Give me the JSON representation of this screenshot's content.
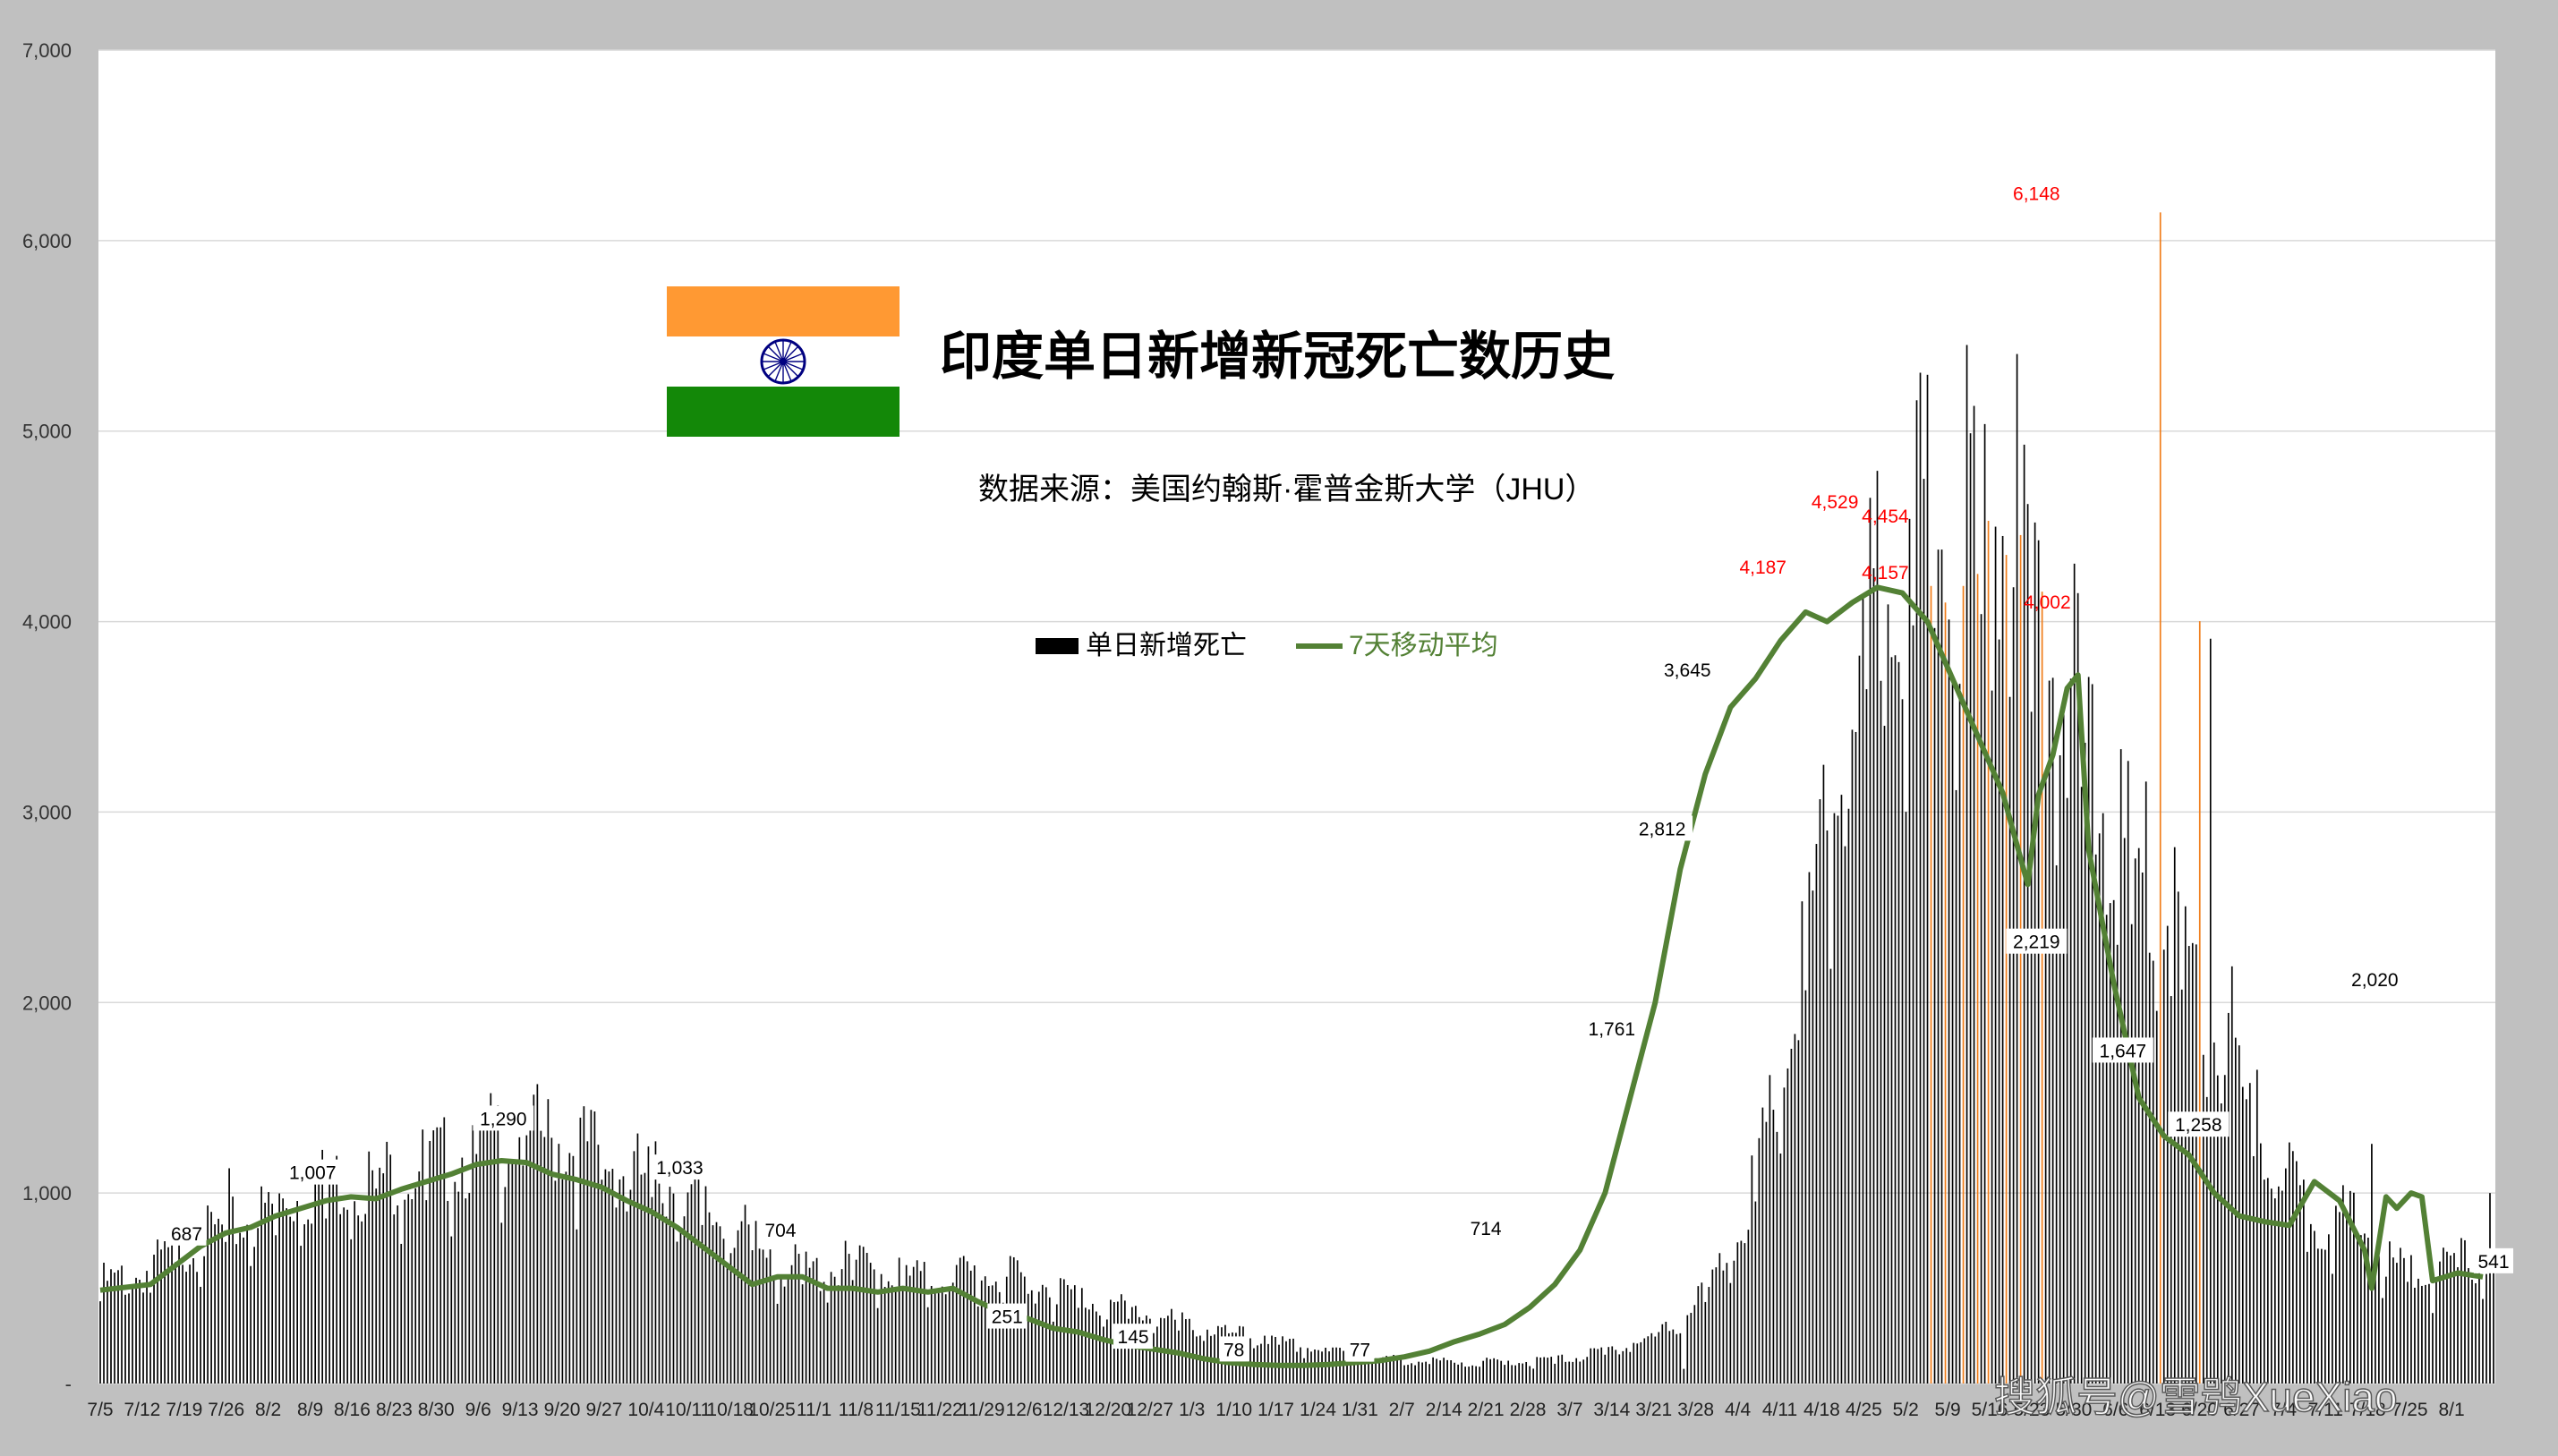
{
  "chart_data": {
    "type": "bar",
    "title": "印度单日新增新冠死亡数历史",
    "subtitle": "数据来源：美国约翰斯·霍普金斯大学（JHU）",
    "watermark": "搜狐号@雪鸮XueXiao",
    "legend": {
      "bar_label": "单日新增死亡",
      "line_label": "7天移动平均",
      "position": "top-center"
    },
    "ylim": [
      0,
      7000
    ],
    "y_ticks": [
      0,
      1000,
      2000,
      3000,
      4000,
      5000,
      6000,
      7000
    ],
    "y_tick_labels": [
      "-",
      "1,000",
      "2,000",
      "3,000",
      "4,000",
      "5,000",
      "6,000",
      "7,000"
    ],
    "grid": true,
    "colors": {
      "bar": "#000000",
      "highlight_bar": "#f07c18",
      "line": "#538135",
      "annotation_red": "#ff0000"
    },
    "x_tick_labels": [
      "7/5",
      "7/12",
      "7/19",
      "7/26",
      "8/2",
      "8/9",
      "8/16",
      "8/23",
      "8/30",
      "9/6",
      "9/13",
      "9/20",
      "9/27",
      "10/4",
      "10/11",
      "10/18",
      "10/25",
      "11/1",
      "11/8",
      "11/15",
      "11/22",
      "11/29",
      "12/6",
      "12/13",
      "12/20",
      "12/27",
      "1/3",
      "1/10",
      "1/17",
      "1/24",
      "1/31",
      "2/7",
      "2/14",
      "2/21",
      "2/28",
      "3/7",
      "3/14",
      "3/21",
      "3/28",
      "4/4",
      "4/11",
      "4/18",
      "4/25",
      "5/2",
      "5/9",
      "5/16",
      "5/23",
      "5/30",
      "6/6",
      "6/13",
      "6/20",
      "6/27",
      "7/4",
      "7/11",
      "7/18",
      "7/25",
      "8/1"
    ],
    "series": [
      {
        "name": "单日新增死亡",
        "keypoints": [
          [
            0,
            470
          ],
          [
            7,
            500
          ],
          [
            14,
            620
          ],
          [
            21,
            700
          ],
          [
            28,
            760
          ],
          [
            35,
            860
          ],
          [
            42,
            940
          ],
          [
            49,
            960
          ],
          [
            56,
            990
          ],
          [
            63,
            1030
          ],
          [
            70,
            1100
          ],
          [
            77,
            1180
          ],
          [
            84,
            1150
          ],
          [
            91,
            1100
          ],
          [
            98,
            1000
          ],
          [
            105,
            940
          ],
          [
            112,
            820
          ],
          [
            119,
            720
          ],
          [
            126,
            560
          ],
          [
            133,
            520
          ],
          [
            140,
            560
          ],
          [
            147,
            520
          ],
          [
            154,
            480
          ],
          [
            161,
            520
          ],
          [
            168,
            500
          ],
          [
            175,
            470
          ],
          [
            182,
            410
          ],
          [
            189,
            360
          ],
          [
            196,
            320
          ],
          [
            203,
            270
          ],
          [
            210,
            240
          ],
          [
            217,
            200
          ],
          [
            224,
            170
          ],
          [
            231,
            150
          ],
          [
            238,
            120
          ],
          [
            245,
            105
          ],
          [
            252,
            100
          ],
          [
            259,
            100
          ],
          [
            266,
            105
          ],
          [
            273,
            115
          ],
          [
            280,
            150
          ],
          [
            287,
            200
          ],
          [
            294,
            280
          ],
          [
            301,
            480
          ],
          [
            308,
            900
          ],
          [
            315,
            1600
          ],
          [
            322,
            2600
          ],
          [
            329,
            3400
          ],
          [
            336,
            3850
          ],
          [
            343,
            4000
          ],
          [
            350,
            4150
          ],
          [
            357,
            4000
          ],
          [
            364,
            3500
          ],
          [
            371,
            2900
          ],
          [
            378,
            2400
          ],
          [
            385,
            2300
          ],
          [
            392,
            1800
          ],
          [
            399,
            1300
          ],
          [
            406,
            1000
          ],
          [
            413,
            800
          ],
          [
            420,
            760
          ],
          [
            427,
            560
          ],
          [
            434,
            500
          ],
          [
            441,
            580
          ],
          [
            446,
            560
          ]
        ],
        "spikes": [
          [
            24,
            1130
          ],
          [
            59,
            1025
          ],
          [
            84,
            1290
          ],
          [
            106,
            1033
          ],
          [
            125,
            704
          ],
          [
            217,
            251
          ],
          [
            240,
            145
          ],
          [
            267,
            78
          ],
          [
            295,
            77
          ],
          [
            329,
            3645
          ],
          [
            332,
            3689
          ],
          [
            338,
            3980
          ],
          [
            341,
            4187
          ],
          [
            344,
            4100
          ],
          [
            347,
            4187
          ],
          [
            352,
            4529
          ],
          [
            358,
            4454
          ],
          [
            362,
            4157
          ],
          [
            367,
            3700
          ],
          [
            384,
            6148
          ],
          [
            391,
            4002
          ],
          [
            393,
            3910
          ],
          [
            397,
            2190
          ],
          [
            402,
            1647
          ],
          [
            423,
            1258
          ],
          [
            445,
            1000
          ],
          [
            455,
            2020
          ],
          [
            460,
            4000
          ],
          [
            477,
            1070
          ],
          [
            483,
            920
          ],
          [
            486,
            541
          ]
        ],
        "orange_bars": [
          [
            341,
            4187
          ],
          [
            344,
            4100
          ],
          [
            347,
            4187
          ],
          [
            350,
            4250
          ],
          [
            352,
            4529
          ],
          [
            355,
            4350
          ],
          [
            358,
            4454
          ],
          [
            362,
            4157
          ],
          [
            384,
            6148
          ],
          [
            391,
            4002
          ]
        ]
      },
      {
        "name": "7天移动平均",
        "points": [
          [
            0,
            490
          ],
          [
            14,
            520
          ],
          [
            21,
            620
          ],
          [
            28,
            720
          ],
          [
            35,
            790
          ],
          [
            42,
            820
          ],
          [
            49,
            880
          ],
          [
            56,
            920
          ],
          [
            63,
            960
          ],
          [
            70,
            980
          ],
          [
            77,
            970
          ],
          [
            84,
            1020
          ],
          [
            91,
            1060
          ],
          [
            98,
            1100
          ],
          [
            105,
            1150
          ],
          [
            112,
            1170
          ],
          [
            119,
            1160
          ],
          [
            126,
            1100
          ],
          [
            133,
            1070
          ],
          [
            140,
            1030
          ],
          [
            147,
            960
          ],
          [
            154,
            900
          ],
          [
            161,
            820
          ],
          [
            168,
            720
          ],
          [
            175,
            620
          ],
          [
            182,
            520
          ],
          [
            189,
            560
          ],
          [
            196,
            560
          ],
          [
            203,
            500
          ],
          [
            210,
            500
          ],
          [
            217,
            480
          ],
          [
            224,
            500
          ],
          [
            231,
            480
          ],
          [
            238,
            500
          ],
          [
            245,
            430
          ],
          [
            252,
            370
          ],
          [
            259,
            340
          ],
          [
            266,
            290
          ],
          [
            273,
            270
          ],
          [
            280,
            230
          ],
          [
            287,
            200
          ],
          [
            294,
            180
          ],
          [
            301,
            160
          ],
          [
            308,
            130
          ],
          [
            315,
            110
          ],
          [
            322,
            100
          ],
          [
            329,
            95
          ],
          [
            336,
            95
          ],
          [
            343,
            100
          ],
          [
            350,
            110
          ],
          [
            357,
            120
          ],
          [
            364,
            140
          ],
          [
            371,
            170
          ],
          [
            378,
            220
          ],
          [
            385,
            260
          ],
          [
            392,
            310
          ],
          [
            399,
            400
          ],
          [
            406,
            520
          ],
          [
            413,
            700
          ],
          [
            420,
            1000
          ],
          [
            427,
            1500
          ],
          [
            434,
            2000
          ],
          [
            441,
            2700
          ],
          [
            448,
            3200
          ],
          [
            455,
            3550
          ],
          [
            462,
            3700
          ],
          [
            469,
            3900
          ],
          [
            476,
            4050
          ],
          [
            482,
            4000
          ],
          [
            489,
            4100
          ],
          [
            496,
            4180
          ],
          [
            503,
            4150
          ],
          [
            510,
            4000
          ],
          [
            517,
            3700
          ],
          [
            524,
            3400
          ],
          [
            531,
            3100
          ],
          [
            538,
            2620
          ],
          [
            541,
            3090
          ],
          [
            545,
            3300
          ],
          [
            549,
            3650
          ],
          [
            552,
            3720
          ],
          [
            555,
            2800
          ],
          [
            562,
            2100
          ],
          [
            569,
            1500
          ],
          [
            576,
            1300
          ],
          [
            583,
            1200
          ],
          [
            590,
            1000
          ],
          [
            597,
            880
          ],
          [
            604,
            850
          ],
          [
            611,
            830
          ],
          [
            618,
            1060
          ],
          [
            625,
            960
          ],
          [
            632,
            700
          ],
          [
            634,
            500
          ],
          [
            638,
            980
          ],
          [
            641,
            920
          ],
          [
            645,
            1000
          ],
          [
            648,
            980
          ],
          [
            651,
            540
          ],
          [
            658,
            580
          ],
          [
            665,
            560
          ]
        ]
      }
    ],
    "annotations": [
      {
        "x": 24,
        "value": "687",
        "color": "black",
        "y": 687
      },
      {
        "x": 59,
        "value": "1,007",
        "color": "black",
        "y": 1007
      },
      {
        "x": 112,
        "value": "1,290",
        "color": "black",
        "y": 1290
      },
      {
        "x": 161,
        "value": "1,033",
        "color": "black",
        "y": 1033
      },
      {
        "x": 189,
        "value": "704",
        "color": "black",
        "y": 704
      },
      {
        "x": 252,
        "value": "251",
        "color": "black",
        "y": 251
      },
      {
        "x": 287,
        "value": "145",
        "color": "black",
        "y": 145
      },
      {
        "x": 315,
        "value": "78",
        "color": "black",
        "y": 78
      },
      {
        "x": 350,
        "value": "77",
        "color": "black",
        "y": 77
      },
      {
        "x": 385,
        "value": "714",
        "color": "black",
        "y": 714
      },
      {
        "x": 420,
        "value": "1,761",
        "color": "black",
        "y": 1761
      },
      {
        "x": 434,
        "value": "2,812",
        "color": "black",
        "y": 2812
      },
      {
        "x": 441,
        "value": "3,645",
        "color": "black",
        "y": 3645
      },
      {
        "x": 462,
        "value": "4,187",
        "color": "red",
        "y": 4187
      },
      {
        "x": 482,
        "value": "4,529",
        "color": "red",
        "y": 4529
      },
      {
        "x": 496,
        "value": "4,454",
        "color": "red",
        "y": 4454
      },
      {
        "x": 496,
        "value": "4,157",
        "color": "red",
        "y": 4157
      },
      {
        "x": 538,
        "value": "6,148",
        "color": "red",
        "y": 6148
      },
      {
        "x": 541,
        "value": "4,002",
        "color": "red",
        "y": 4002
      },
      {
        "x": 538,
        "value": "2,219",
        "color": "black",
        "y": 2219
      },
      {
        "x": 562,
        "value": "1,647",
        "color": "black",
        "y": 1647
      },
      {
        "x": 583,
        "value": "1,258",
        "color": "black",
        "y": 1258
      },
      {
        "x": 632,
        "value": "2,020",
        "color": "black",
        "y": 2020
      },
      {
        "x": 665,
        "value": "541",
        "color": "black",
        "y": 541
      }
    ]
  }
}
